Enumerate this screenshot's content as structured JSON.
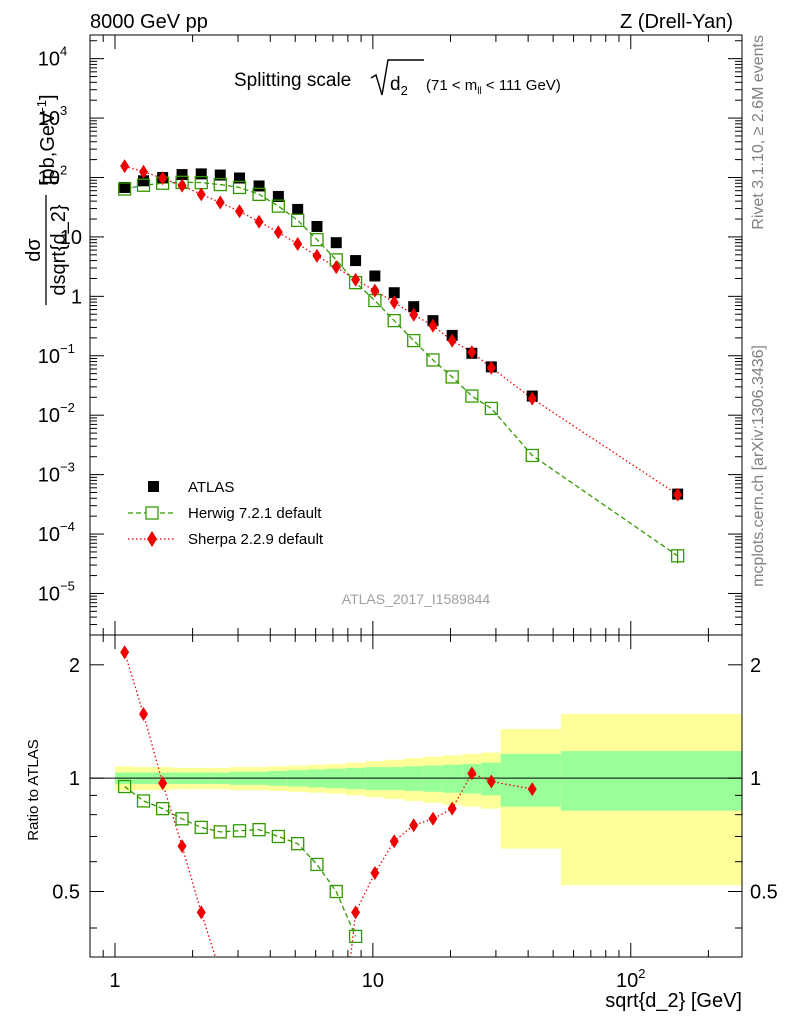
{
  "header": {
    "left": "8000 GeV pp",
    "right": "Z (Drell-Yan)"
  },
  "side_labels": {
    "rivet": "Rivet 3.1.10, ≥ 2.6M events",
    "mcplots": "mcplots.cern.ch [arXiv:1306.3436]"
  },
  "plot_title": {
    "main": "Splitting scale",
    "sub": "2",
    "range_open": "(71 < m",
    "range_sub": "ll",
    "range_close": " < 111 GeV)"
  },
  "watermark": "ATLAS_2017_I1589844",
  "legend": {
    "placement": "lower-left",
    "entries": [
      "ATLAS",
      "Herwig 7.2.1 default",
      "Sherpa 2.2.9 default"
    ]
  },
  "colors": {
    "atlas": "#000000",
    "herwig": "#339900",
    "sherpa": "#ee0000",
    "band_inner": "#99ff99",
    "band_outer": "#ffff99"
  },
  "axes": {
    "top_ylabel_num": "dσ",
    "top_ylabel_den": "dsqrt{d_2}",
    "top_ylabel_unit": "[pb,GeV",
    "top_ylabel_unit_exp": "-1",
    "top_ylabel_unit_close": "]",
    "bottom_ylabel": "Ratio to ATLAS",
    "xlabel": "sqrt{d_2} [GeV]",
    "x_ticks": [
      {
        "value": 1,
        "label": "1"
      },
      {
        "value": 10,
        "label": "10"
      },
      {
        "value": 100,
        "label": "10",
        "exp": "2"
      }
    ],
    "y_ticks_top": [
      {
        "value": 10000,
        "label": "10",
        "exp": "4"
      },
      {
        "value": 1000,
        "label": "10",
        "exp": "3"
      },
      {
        "value": 100,
        "label": "10",
        "exp": "2"
      },
      {
        "value": 10,
        "label": "10"
      },
      {
        "value": 1,
        "label": "1"
      },
      {
        "value": 0.1,
        "label": "10",
        "exp": "−1"
      },
      {
        "value": 0.01,
        "label": "10",
        "exp": "−2"
      },
      {
        "value": 0.001,
        "label": "10",
        "exp": "−3"
      },
      {
        "value": 0.0001,
        "label": "10",
        "exp": "−4"
      },
      {
        "value": 1e-05,
        "label": "10",
        "exp": "−5"
      }
    ],
    "y_ticks_bottom": [
      {
        "value": 2,
        "label": "2"
      },
      {
        "value": 1,
        "label": "1"
      },
      {
        "value": 0.5,
        "label": "0.5"
      }
    ]
  },
  "chart_data": [
    {
      "type": "scatter",
      "panel": "main",
      "x_scale": "log",
      "y_scale": "log",
      "xlim": [
        0.8,
        270
      ],
      "ylim": [
        2e-06,
        25000
      ],
      "x": [
        1.09,
        1.29,
        1.53,
        1.82,
        2.16,
        2.56,
        3.04,
        3.62,
        4.3,
        5.11,
        6.07,
        7.21,
        8.57,
        10.18,
        12.1,
        14.4,
        17.1,
        20.3,
        24.2,
        28.8,
        41.5,
        152
      ],
      "series": [
        {
          "name": "ATLAS",
          "marker": "filled-square",
          "values": [
            68,
            88,
            100,
            112,
            115,
            110,
            98,
            72,
            48,
            29,
            15,
            8.0,
            4.0,
            2.2,
            1.15,
            0.67,
            0.39,
            0.22,
            0.11,
            0.065,
            0.021,
            0.00047
          ]
        },
        {
          "name": "Herwig 7.2.1 default",
          "marker": "open-square",
          "line": "dashed",
          "values": [
            64,
            74,
            80,
            83,
            82,
            76,
            68,
            52,
            33,
            19,
            9.0,
            4.1,
            1.7,
            0.85,
            0.39,
            0.18,
            0.085,
            0.044,
            0.021,
            0.013,
            0.0021,
            4.3e-05
          ]
        },
        {
          "name": "Sherpa 2.2.9 default",
          "marker": "filled-diamond",
          "line": "dotted",
          "values": [
            155,
            125,
            97,
            73,
            52,
            38,
            27,
            18,
            12,
            7.6,
            4.8,
            3.1,
            1.9,
            1.25,
            0.79,
            0.49,
            0.32,
            0.18,
            0.115,
            0.063,
            0.019,
            0.00046
          ]
        }
      ],
      "herwig_last_error": [
        3.2e-05,
        5.5e-05
      ]
    },
    {
      "type": "line",
      "panel": "ratio",
      "x_scale": "log",
      "y_scale": "log",
      "xlim": [
        0.8,
        270
      ],
      "ylim": [
        0.335,
        2.4
      ],
      "reference": 1,
      "series": [
        {
          "name": "Herwig 7.2.1 default",
          "x": [
            1.09,
            1.29,
            1.53,
            1.82,
            2.16,
            2.56,
            3.04,
            3.62,
            4.3,
            5.11,
            6.07,
            7.21,
            8.57
          ],
          "values": [
            0.95,
            0.87,
            0.83,
            0.78,
            0.74,
            0.72,
            0.725,
            0.73,
            0.7,
            0.67,
            0.59,
            0.5,
            0.38
          ]
        },
        {
          "name": "Sherpa 2.2.9 default",
          "x": [
            1.09,
            1.29,
            1.53,
            1.82,
            2.16,
            8.57,
            10.18,
            12.1,
            14.4,
            17.1,
            20.3,
            24.2,
            28.8,
            41.5
          ],
          "values": [
            2.16,
            1.48,
            0.97,
            0.66,
            0.44,
            0.44,
            0.56,
            0.68,
            0.75,
            0.78,
            0.83,
            1.03,
            0.98,
            0.935
          ]
        }
      ],
      "sherpa_offscale_segments": [
        [
          2.16,
          0.44,
          2.45,
          0.32
        ],
        [
          8.57,
          0.44,
          8.2,
          0.32
        ]
      ],
      "band_edges": [
        1.0,
        1.18,
        1.4,
        1.67,
        1.98,
        2.35,
        2.79,
        3.31,
        3.94,
        4.68,
        5.56,
        6.61,
        7.86,
        9.34,
        11.1,
        13.2,
        15.7,
        18.6,
        22.2,
        26.3,
        31.3,
        53.6,
        270
      ],
      "band_inner_halfwidth": [
        0.035,
        0.035,
        0.035,
        0.035,
        0.035,
        0.035,
        0.04,
        0.04,
        0.045,
        0.05,
        0.055,
        0.06,
        0.065,
        0.07,
        0.07,
        0.075,
        0.08,
        0.085,
        0.09,
        0.1,
        0.16,
        0.18
      ],
      "band_outer_halfwidth": [
        0.075,
        0.07,
        0.07,
        0.065,
        0.065,
        0.065,
        0.07,
        0.07,
        0.075,
        0.08,
        0.085,
        0.09,
        0.1,
        0.11,
        0.12,
        0.13,
        0.14,
        0.15,
        0.16,
        0.17,
        0.35,
        0.48
      ]
    }
  ]
}
